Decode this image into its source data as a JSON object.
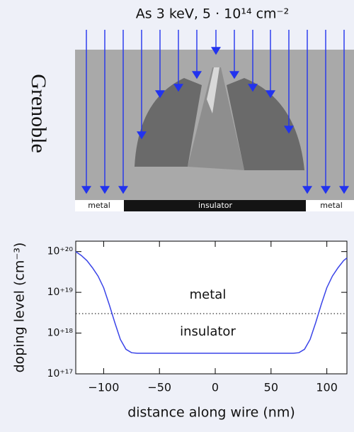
{
  "figure": {
    "title": "As 3 keV, 5 · 10¹⁴ cm⁻²",
    "side_label": "Grenoble",
    "labels": [
      "metal",
      "insulator",
      "metal"
    ]
  },
  "chart_data": {
    "type": "line",
    "color": "#3a44e8",
    "log_y": true,
    "ylabel": "doping level (cm⁻³)",
    "xlabel": "distance along wire (nm)",
    "annotations": [
      "metal",
      "insulator"
    ],
    "threshold": 3e+18,
    "x": [
      -125,
      -120,
      -115,
      -110,
      -105,
      -100,
      -95,
      -90,
      -85,
      -80,
      -75,
      -70,
      70,
      75,
      80,
      85,
      90,
      95,
      100,
      105,
      110,
      115,
      118
    ],
    "values": [
      1e+20,
      8e+19,
      6e+19,
      4e+19,
      2.5e+19,
      1.3e+19,
      5e+18,
      1.8e+18,
      7e+17,
      4e+17,
      3.3e+17,
      3.2e+17,
      3.2e+17,
      3.3e+17,
      4e+17,
      7e+17,
      1.8e+18,
      5e+18,
      1.3e+19,
      2.5e+19,
      4e+19,
      6e+19,
      7e+19
    ],
    "xlim": [
      -125,
      118
    ],
    "ylim": [
      1e+17,
      1.8e+20
    ],
    "xticks": [
      {
        "value": -100,
        "label": "−100"
      },
      {
        "value": -50,
        "label": "−50"
      },
      0,
      50,
      100
    ],
    "yticks": [
      {
        "value": 1e+17,
        "label": "10⁺¹⁷"
      },
      {
        "value": 1e+18,
        "label": "10⁺¹⁸"
      },
      {
        "value": 1e+19,
        "label": "10⁺¹⁹"
      },
      {
        "value": 1e+20,
        "label": "10⁺²⁰"
      }
    ]
  }
}
